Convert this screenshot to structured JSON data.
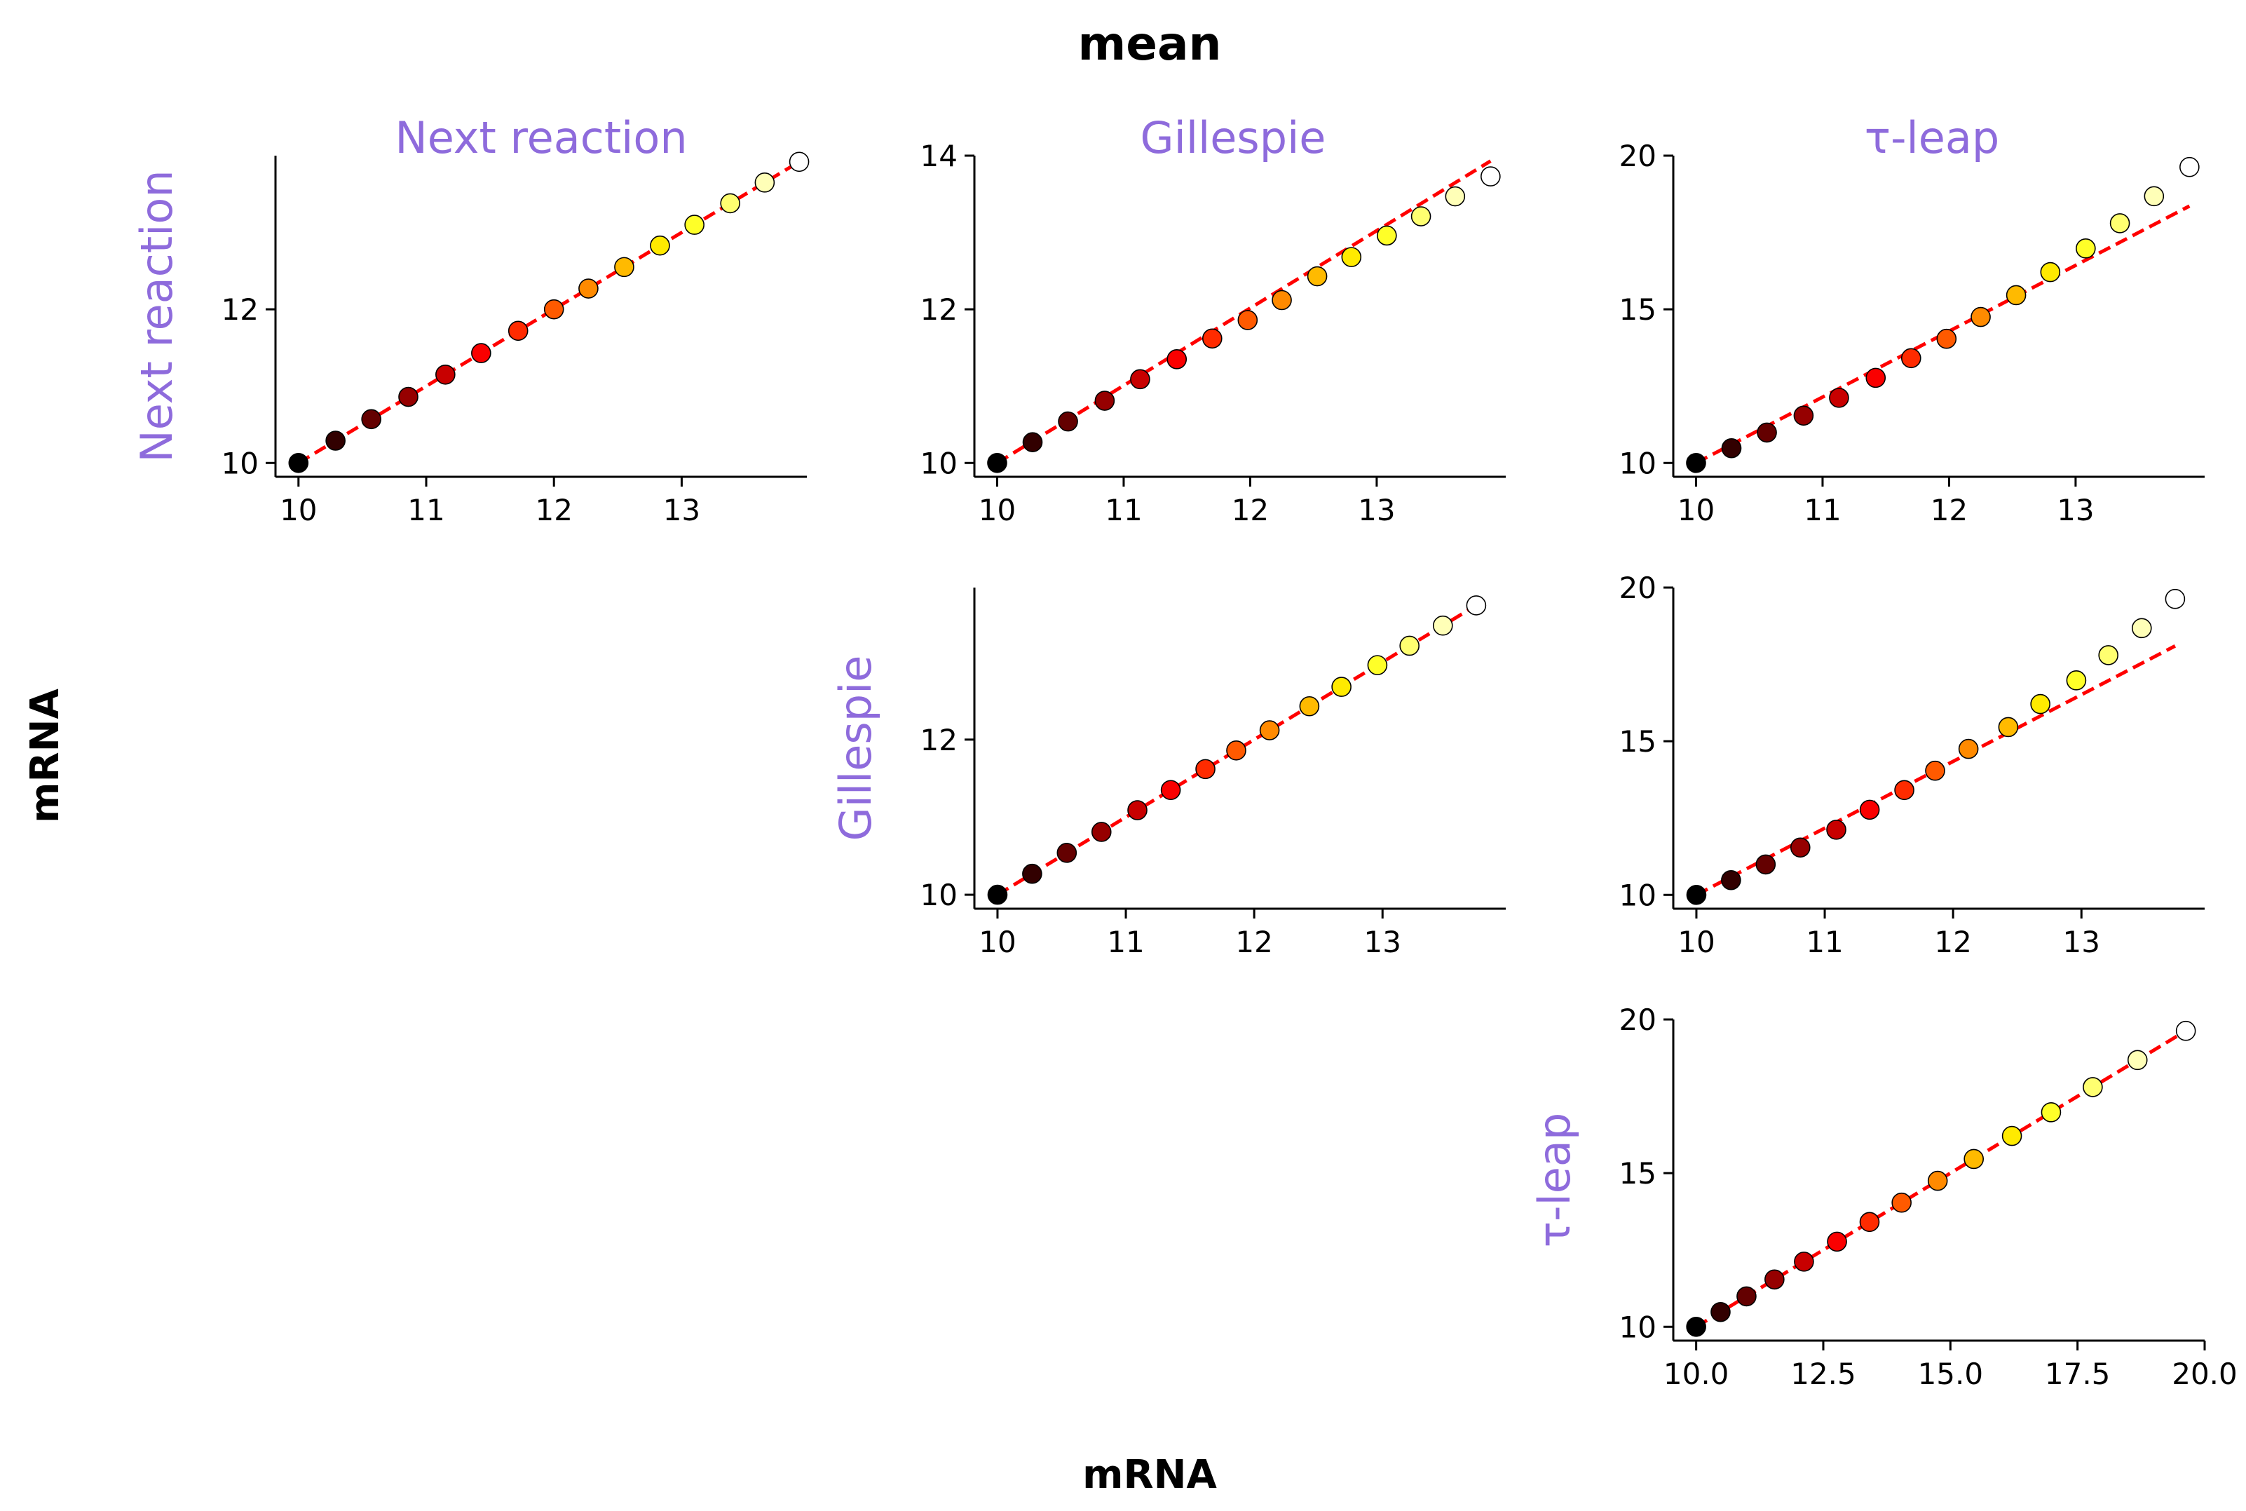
{
  "figure": {
    "title": "mean",
    "xlabel": "mRNA",
    "ylabel": "mRNA",
    "label_color": "#8e6bdc",
    "fit_color": "#ff0000",
    "colormap": "hot",
    "spine_style": "left and bottom only"
  },
  "chart_data": [
    {
      "type": "scatter",
      "row": 0,
      "col": 0,
      "col_label": "Next reaction",
      "row_label": "Next reaction",
      "xlim": [
        9.82,
        13.98
      ],
      "ylim": [
        9.82,
        14.0
      ],
      "xticks": [
        10,
        11,
        12,
        13
      ],
      "yticks": [
        10,
        12
      ],
      "x": [
        10.0,
        10.29,
        10.57,
        10.86,
        11.15,
        11.43,
        11.72,
        12.0,
        12.27,
        12.55,
        12.83,
        13.1,
        13.38,
        13.65,
        13.92
      ],
      "y": [
        10.0,
        10.29,
        10.57,
        10.86,
        11.15,
        11.43,
        11.72,
        12.0,
        12.27,
        12.55,
        12.83,
        13.1,
        13.38,
        13.65,
        13.92
      ],
      "fit": [
        [
          10.0,
          10.0
        ],
        [
          13.92,
          13.92
        ]
      ]
    },
    {
      "type": "scatter",
      "row": 0,
      "col": 1,
      "col_label": "Gillespie",
      "xlim": [
        9.82,
        14.02
      ],
      "ylim": [
        9.82,
        14.0
      ],
      "xticks": [
        10,
        11,
        12,
        13
      ],
      "yticks": [
        10,
        12,
        14
      ],
      "x": [
        10.0,
        10.28,
        10.56,
        10.85,
        11.13,
        11.42,
        11.7,
        11.98,
        12.25,
        12.53,
        12.8,
        13.08,
        13.35,
        13.62,
        13.9
      ],
      "y": [
        10.0,
        10.27,
        10.54,
        10.81,
        11.09,
        11.35,
        11.62,
        11.86,
        12.12,
        12.43,
        12.68,
        12.96,
        13.21,
        13.47,
        13.73
      ],
      "fit": [
        [
          10.0,
          10.0
        ],
        [
          13.9,
          13.93
        ]
      ]
    },
    {
      "type": "scatter",
      "row": 0,
      "col": 2,
      "col_label": "τ-leap",
      "xlim": [
        9.82,
        14.02
      ],
      "ylim": [
        9.55,
        20.0
      ],
      "xticks": [
        10,
        11,
        12,
        13
      ],
      "yticks": [
        10,
        15,
        20
      ],
      "x": [
        10.0,
        10.28,
        10.56,
        10.85,
        11.13,
        11.42,
        11.7,
        11.98,
        12.25,
        12.53,
        12.8,
        13.08,
        13.35,
        13.62,
        13.9
      ],
      "y": [
        10.0,
        10.48,
        10.99,
        11.54,
        12.12,
        12.77,
        13.41,
        14.04,
        14.75,
        15.46,
        16.21,
        16.98,
        17.8,
        18.68,
        19.63
      ],
      "fit": [
        [
          10.0,
          10.0
        ],
        [
          13.9,
          18.36
        ]
      ]
    },
    {
      "type": "scatter",
      "row": 1,
      "col": 1,
      "col_label": "Gillespie",
      "row_label": "Gillespie",
      "xlim": [
        9.82,
        13.96
      ],
      "ylim": [
        9.82,
        13.96
      ],
      "xticks": [
        10,
        11,
        12,
        13
      ],
      "yticks": [
        10,
        12
      ],
      "x": [
        10.0,
        10.27,
        10.54,
        10.81,
        11.09,
        11.35,
        11.62,
        11.86,
        12.12,
        12.43,
        12.68,
        12.96,
        13.21,
        13.47,
        13.73
      ],
      "y": [
        10.0,
        10.27,
        10.54,
        10.81,
        11.09,
        11.35,
        11.62,
        11.86,
        12.12,
        12.43,
        12.68,
        12.96,
        13.21,
        13.47,
        13.73
      ],
      "fit": [
        [
          10.0,
          10.0
        ],
        [
          13.73,
          13.73
        ]
      ]
    },
    {
      "type": "scatter",
      "row": 1,
      "col": 2,
      "col_label": "τ-leap",
      "xlim": [
        9.82,
        13.96
      ],
      "ylim": [
        9.55,
        20.0
      ],
      "xticks": [
        10,
        11,
        12,
        13
      ],
      "yticks": [
        10,
        15,
        20
      ],
      "x": [
        10.0,
        10.27,
        10.54,
        10.81,
        11.09,
        11.35,
        11.62,
        11.86,
        12.12,
        12.43,
        12.68,
        12.96,
        13.21,
        13.47,
        13.73
      ],
      "y": [
        10.0,
        10.48,
        10.99,
        11.54,
        12.12,
        12.77,
        13.41,
        14.04,
        14.75,
        15.46,
        16.21,
        16.98,
        17.8,
        18.68,
        19.63
      ],
      "fit": [
        [
          10.0,
          10.0
        ],
        [
          13.73,
          18.1
        ]
      ]
    },
    {
      "type": "scatter",
      "row": 2,
      "col": 2,
      "col_label": "τ-leap",
      "row_label": "τ-leap",
      "xlim": [
        9.55,
        20.0
      ],
      "ylim": [
        9.55,
        20.0
      ],
      "xticks": [
        10.0,
        12.5,
        15.0,
        17.5,
        20.0
      ],
      "yticks": [
        10,
        15,
        20
      ],
      "x": [
        10.0,
        10.48,
        10.99,
        11.54,
        12.12,
        12.77,
        13.41,
        14.04,
        14.75,
        15.46,
        16.21,
        16.98,
        17.8,
        18.68,
        19.63
      ],
      "y": [
        10.0,
        10.48,
        10.99,
        11.54,
        12.12,
        12.77,
        13.41,
        14.04,
        14.75,
        15.46,
        16.21,
        16.98,
        17.8,
        18.68,
        19.63
      ],
      "fit": [
        [
          10.0,
          10.0
        ],
        [
          19.63,
          19.63
        ]
      ]
    }
  ]
}
